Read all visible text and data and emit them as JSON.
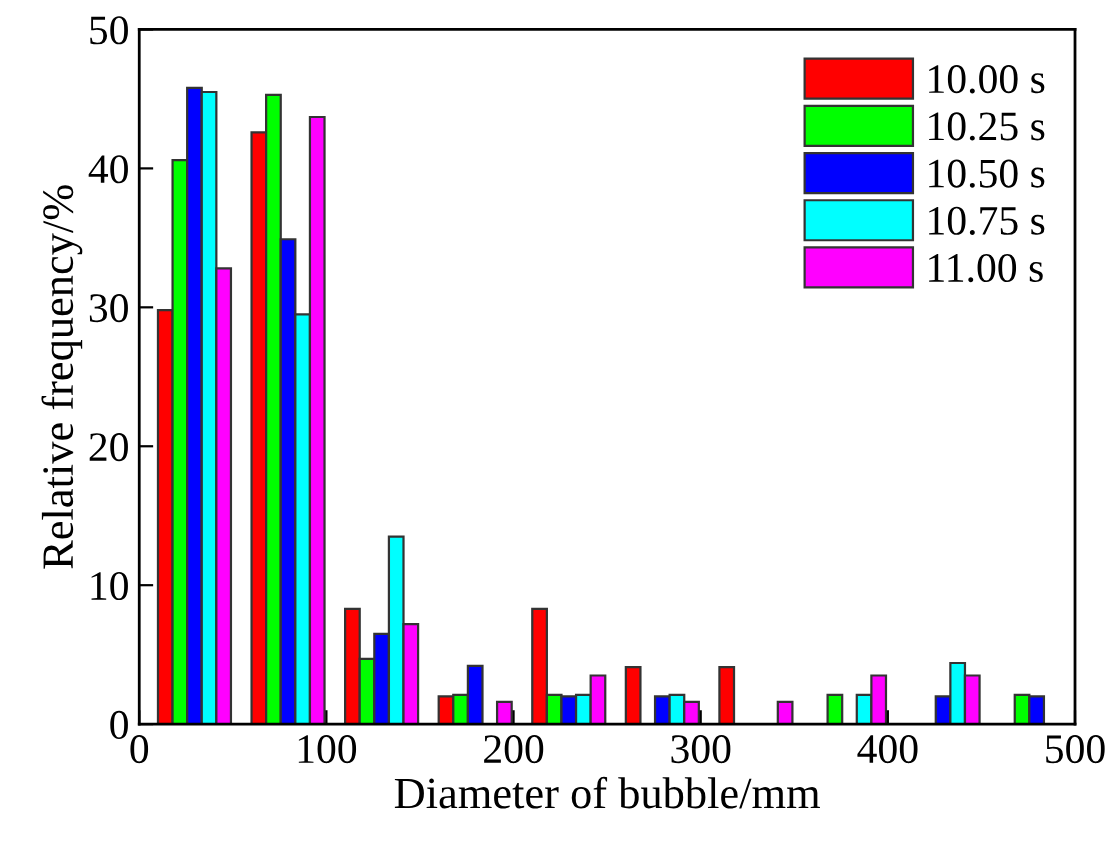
{
  "chart_data": {
    "type": "bar",
    "xlabel": "Diameter of bubble/mm",
    "ylabel": "Relative frequency/%",
    "x": [
      25,
      75,
      125,
      175,
      225,
      275,
      325,
      375,
      425,
      475
    ],
    "series": [
      {
        "name": "10.00 s",
        "color": "#ff0000",
        "values": [
          29.8,
          42.6,
          8.3,
          2.0,
          8.3,
          4.1,
          4.1,
          null,
          null,
          null
        ]
      },
      {
        "name": "10.25 s",
        "color": "#00ff00",
        "values": [
          40.6,
          45.3,
          4.7,
          2.1,
          2.1,
          null,
          null,
          2.1,
          null,
          2.1
        ]
      },
      {
        "name": "10.50 s",
        "color": "#0000ff",
        "values": [
          45.8,
          34.9,
          6.5,
          4.2,
          2.0,
          2.0,
          null,
          null,
          2.0,
          2.0
        ]
      },
      {
        "name": "10.75 s",
        "color": "#00ffff",
        "values": [
          45.5,
          29.5,
          13.5,
          null,
          2.1,
          2.1,
          null,
          2.1,
          4.4,
          null
        ]
      },
      {
        "name": "11.00 s",
        "color": "#ff00ff",
        "values": [
          32.8,
          43.7,
          7.2,
          1.6,
          3.5,
          1.6,
          1.6,
          3.5,
          3.5,
          null
        ]
      }
    ],
    "xlim": [
      0,
      500
    ],
    "xticks": [
      0,
      100,
      200,
      300,
      400,
      500
    ],
    "ylim": [
      0,
      50
    ],
    "yticks": [
      0,
      10,
      20,
      30,
      40,
      50
    ],
    "legend": "top right",
    "grid": false
  }
}
